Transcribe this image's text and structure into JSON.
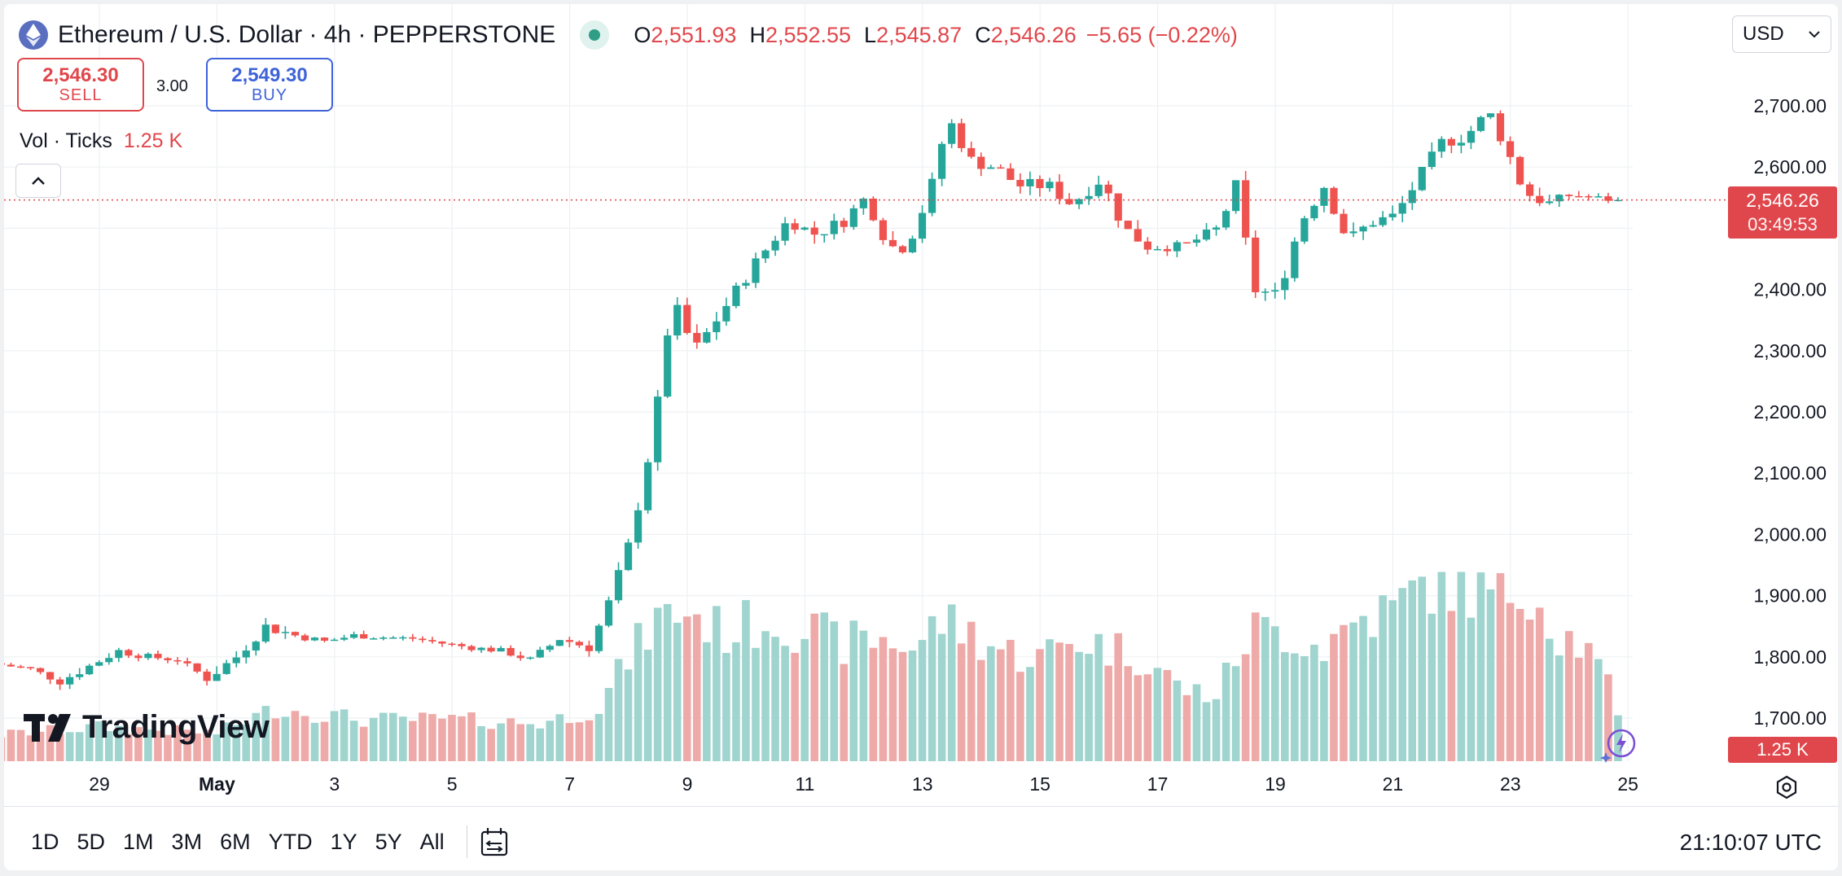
{
  "header": {
    "symbol_title": "Ethereum / U.S. Dollar · 4h · PEPPERSTONE",
    "ohlc": {
      "o_label": "O",
      "o_value": "2,551.93",
      "h_label": "H",
      "h_value": "2,552.55",
      "l_label": "L",
      "l_value": "2,545.87",
      "c_label": "C",
      "c_value": "2,546.26",
      "change": "−5.65 (−0.22%)"
    },
    "currency": "USD"
  },
  "trade": {
    "sell_price": "2,546.30",
    "sell_label": "SELL",
    "spread": "3.00",
    "buy_price": "2,549.30",
    "buy_label": "BUY"
  },
  "volume_indicator": {
    "label": "Vol · Ticks",
    "value": "1.25 K"
  },
  "price_tag": {
    "price": "2,546.26",
    "countdown": "03:49:53"
  },
  "volume_tag": "1.25 K",
  "logo_text": "TradingView",
  "timeframes": [
    "1D",
    "5D",
    "1M",
    "3M",
    "6M",
    "YTD",
    "1Y",
    "5Y",
    "All"
  ],
  "clock": "21:10:07 UTC",
  "colors": {
    "up": "#26a69a",
    "down": "#ef5350",
    "up_vol": "#9fd4cf",
    "down_vol": "#eeaaa8",
    "grid": "#eef0f3"
  },
  "icons": {
    "symbol": "ethereum-icon",
    "date_range": "calendar-range-icon",
    "settings": "gear-icon",
    "collapse": "chevron-up-icon"
  },
  "chart_data": {
    "type": "candlestick",
    "y_axis_ticks": [
      "2,700.00",
      "2,600.00",
      "2,500.00",
      "2,400.00",
      "2,300.00",
      "2,200.00",
      "2,100.00",
      "2,000.00",
      "1,900.00",
      "1,800.00",
      "1,700.00"
    ],
    "y_axis_values": [
      2700,
      2600,
      2500,
      2400,
      2300,
      2200,
      2100,
      2000,
      1900,
      1800,
      1700
    ],
    "ylim": [
      1660,
      2790
    ],
    "x_axis_ticks": [
      {
        "label": "29",
        "day": 29
      },
      {
        "label": "May",
        "day": 31
      },
      {
        "label": "3",
        "day": 33
      },
      {
        "label": "5",
        "day": 35
      },
      {
        "label": "7",
        "day": 37
      },
      {
        "label": "9",
        "day": 39
      },
      {
        "label": "11",
        "day": 41
      },
      {
        "label": "13",
        "day": 43
      },
      {
        "label": "15",
        "day": 45
      },
      {
        "label": "17",
        "day": 47
      },
      {
        "label": "19",
        "day": 49
      },
      {
        "label": "21",
        "day": 51
      },
      {
        "label": "23",
        "day": 53
      },
      {
        "label": "25",
        "day": 55
      }
    ],
    "anchors": [
      [
        27.3,
        1790,
        6
      ],
      [
        28.0,
        1780,
        6
      ],
      [
        28.5,
        1760,
        10
      ],
      [
        29.0,
        1785,
        8
      ],
      [
        29.5,
        1810,
        8
      ],
      [
        30.0,
        1800,
        6
      ],
      [
        30.5,
        1795,
        6
      ],
      [
        31.0,
        1765,
        12
      ],
      [
        31.5,
        1800,
        10
      ],
      [
        32.0,
        1850,
        12
      ],
      [
        32.5,
        1835,
        7
      ],
      [
        33.0,
        1825,
        6
      ],
      [
        33.5,
        1835,
        6
      ],
      [
        34.0,
        1832,
        5
      ],
      [
        34.5,
        1830,
        5
      ],
      [
        35.0,
        1822,
        5
      ],
      [
        35.5,
        1815,
        6
      ],
      [
        36.0,
        1810,
        6
      ],
      [
        36.5,
        1795,
        8
      ],
      [
        37.0,
        1830,
        9
      ],
      [
        37.5,
        1815,
        10
      ],
      [
        37.8,
        1880,
        12
      ],
      [
        38.2,
        1990,
        16
      ],
      [
        38.6,
        2170,
        16
      ],
      [
        38.9,
        2380,
        20
      ],
      [
        39.3,
        2300,
        16
      ],
      [
        39.8,
        2370,
        14
      ],
      [
        40.3,
        2440,
        14
      ],
      [
        40.9,
        2515,
        14
      ],
      [
        41.3,
        2490,
        14
      ],
      [
        41.8,
        2510,
        14
      ],
      [
        42.2,
        2550,
        14
      ],
      [
        42.6,
        2470,
        14
      ],
      [
        42.9,
        2470,
        14
      ],
      [
        43.3,
        2560,
        14
      ],
      [
        43.6,
        2680,
        14
      ],
      [
        44.0,
        2610,
        14
      ],
      [
        44.4,
        2600,
        14
      ],
      [
        44.8,
        2570,
        14
      ],
      [
        45.3,
        2570,
        14
      ],
      [
        45.7,
        2540,
        14
      ],
      [
        46.2,
        2580,
        14
      ],
      [
        46.6,
        2500,
        14
      ],
      [
        47.0,
        2470,
        10
      ],
      [
        47.6,
        2470,
        10
      ],
      [
        48.2,
        2500,
        12
      ],
      [
        48.5,
        2570,
        14
      ],
      [
        48.8,
        2400,
        16
      ],
      [
        49.2,
        2390,
        14
      ],
      [
        49.6,
        2510,
        14
      ],
      [
        50.0,
        2570,
        14
      ],
      [
        50.4,
        2480,
        14
      ],
      [
        50.8,
        2510,
        14
      ],
      [
        51.2,
        2520,
        14
      ],
      [
        51.6,
        2580,
        14
      ],
      [
        52.0,
        2640,
        14
      ],
      [
        52.4,
        2650,
        14
      ],
      [
        52.8,
        2690,
        14
      ],
      [
        53.1,
        2630,
        14
      ],
      [
        53.4,
        2560,
        14
      ],
      [
        53.8,
        2540,
        10
      ],
      [
        54.2,
        2555,
        8
      ],
      [
        54.6,
        2550,
        6
      ],
      [
        54.9,
        2546,
        4
      ]
    ],
    "volume_anchors": [
      [
        27.3,
        0.14
      ],
      [
        29.0,
        0.18
      ],
      [
        31.0,
        0.15
      ],
      [
        32.0,
        0.28
      ],
      [
        33.5,
        0.22
      ],
      [
        35.0,
        0.22
      ],
      [
        36.5,
        0.2
      ],
      [
        37.5,
        0.28
      ],
      [
        38.0,
        0.55
      ],
      [
        38.5,
        0.75
      ],
      [
        39.0,
        0.8
      ],
      [
        39.6,
        0.68
      ],
      [
        40.4,
        0.75
      ],
      [
        41.0,
        0.7
      ],
      [
        41.6,
        0.62
      ],
      [
        42.3,
        0.65
      ],
      [
        42.9,
        0.6
      ],
      [
        43.3,
        0.75
      ],
      [
        43.8,
        0.68
      ],
      [
        44.4,
        0.58
      ],
      [
        45.0,
        0.55
      ],
      [
        45.6,
        0.65
      ],
      [
        46.2,
        0.6
      ],
      [
        46.8,
        0.55
      ],
      [
        47.4,
        0.38
      ],
      [
        48.0,
        0.35
      ],
      [
        48.6,
        0.7
      ],
      [
        49.2,
        0.68
      ],
      [
        49.8,
        0.6
      ],
      [
        50.4,
        0.75
      ],
      [
        51.0,
        0.8
      ],
      [
        51.6,
        0.95
      ],
      [
        52.2,
        0.92
      ],
      [
        52.8,
        0.85
      ],
      [
        53.3,
        0.95
      ],
      [
        53.8,
        0.68
      ],
      [
        54.2,
        0.62
      ],
      [
        54.6,
        0.45
      ],
      [
        54.9,
        0.15
      ]
    ],
    "last_price": 2546.26
  }
}
